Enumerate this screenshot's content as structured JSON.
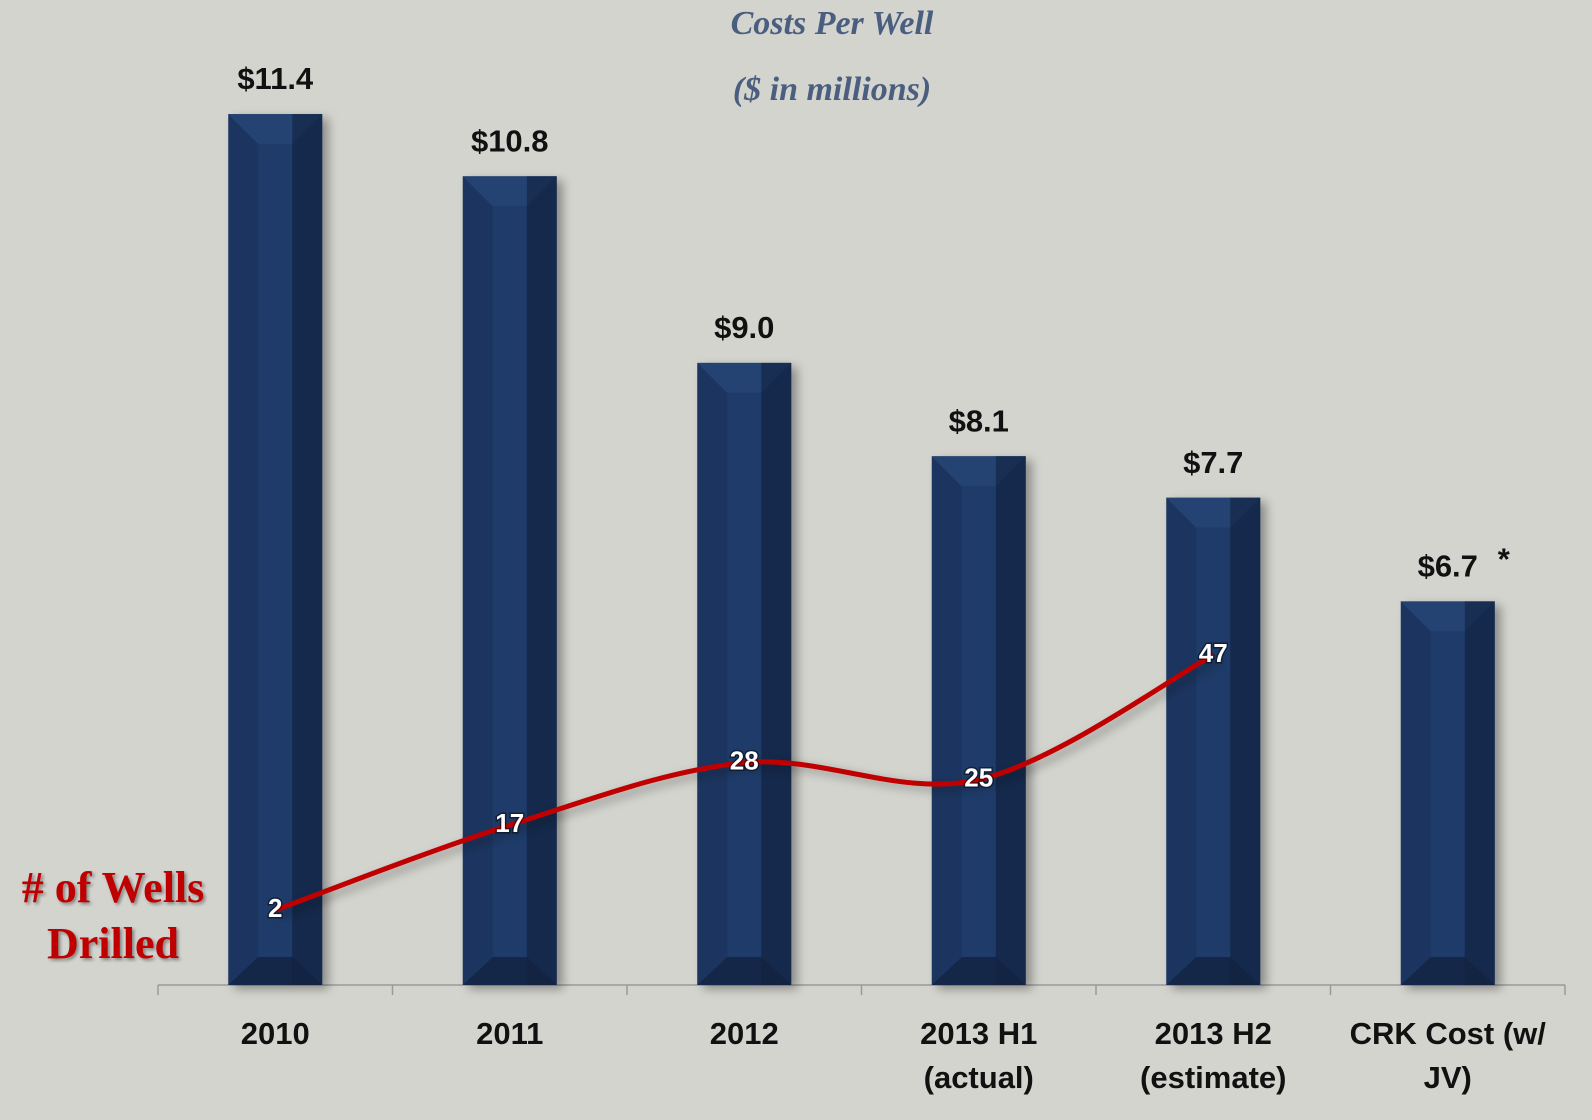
{
  "chart_data": {
    "type": "bar",
    "title": "Costs Per Well",
    "subtitle": "($ in millions)",
    "categories": [
      "2010",
      "2011",
      "2012",
      "2013 H1 (actual)",
      "2013 H2 (estimate)",
      "CRK Cost (w/ JV)"
    ],
    "series": [
      {
        "type": "bar",
        "color": "#1b3560",
        "values": [
          11.4,
          10.8,
          9.0,
          8.1,
          7.7,
          6.7
        ],
        "value_labels": [
          "$11.4",
          "$10.8",
          "$9.0",
          "$8.1",
          "$7.7",
          "$6.7"
        ]
      },
      {
        "type": "line",
        "name": "# of Wells Drilled",
        "color": "#c00000",
        "axis": "y2",
        "values": [
          2,
          17,
          28,
          25,
          47,
          null
        ]
      }
    ],
    "annotations": [
      "*"
    ],
    "ylim": [
      3,
      12.5
    ],
    "y2lim": [
      -11.2,
      162.5
    ],
    "grid": false
  }
}
